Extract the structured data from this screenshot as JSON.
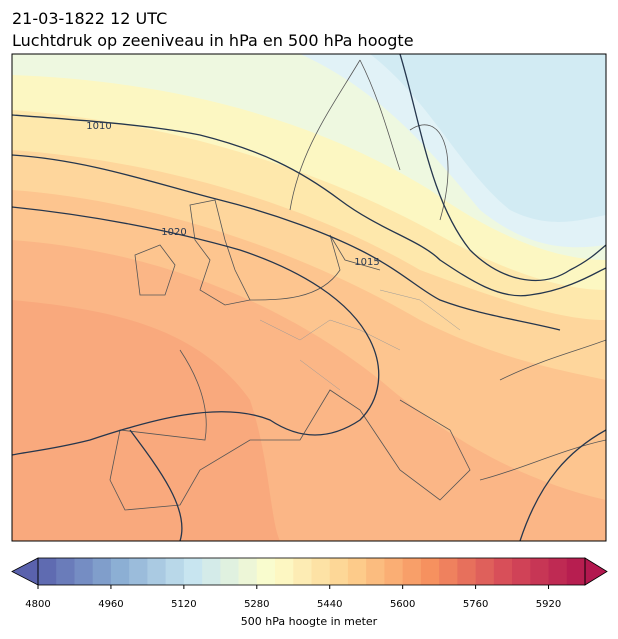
{
  "header": {
    "line1": "21-03-1822 12 UTC",
    "line2": "Luchtdruk op zeeniveau in hPa en 500 hPa hoogte"
  },
  "contour_labels": [
    "1010",
    "1020",
    "1015"
  ],
  "colorbar": {
    "label": "500 hPa hoogte in meter",
    "clim": [
      4800,
      6000
    ],
    "step": 40,
    "ticks": [
      4800,
      4960,
      5120,
      5280,
      5440,
      5600,
      5760,
      5920
    ],
    "colormap": [
      "#5a62ad",
      "#89acd2",
      "#c9e6f1",
      "#fdfecb",
      "#fdd08e",
      "#f7925f",
      "#d64c59",
      "#b3184f"
    ]
  }
}
